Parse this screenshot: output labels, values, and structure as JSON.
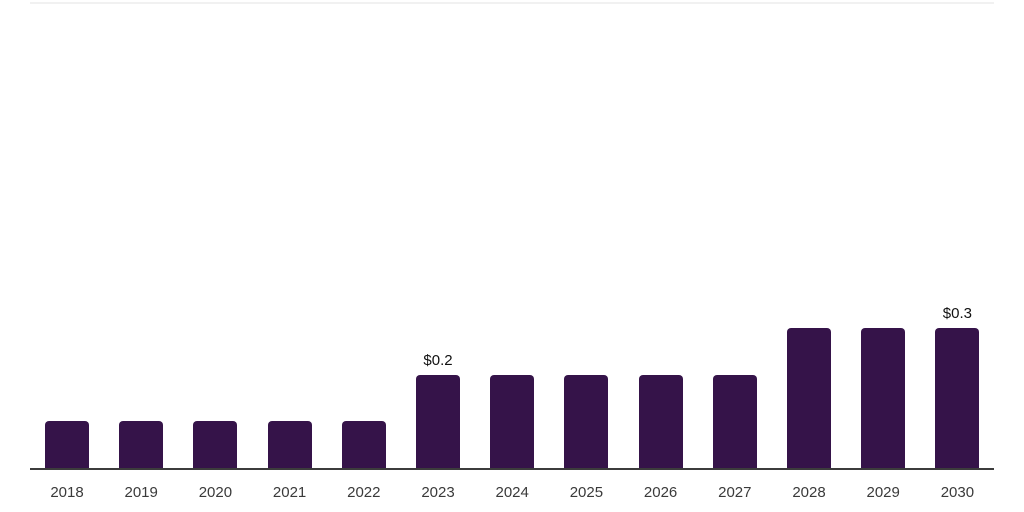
{
  "chart_data": {
    "type": "bar",
    "title": "",
    "xlabel": "",
    "ylabel": "",
    "categories": [
      "2018",
      "2019",
      "2020",
      "2021",
      "2022",
      "2023",
      "2024",
      "2025",
      "2026",
      "2027",
      "2028",
      "2029",
      "2030"
    ],
    "values": [
      0.1,
      0.1,
      0.1,
      0.1,
      0.1,
      0.2,
      0.2,
      0.2,
      0.2,
      0.2,
      0.3,
      0.3,
      0.3
    ],
    "data_labels": [
      "",
      "",
      "",
      "",
      "",
      "$0.2",
      "",
      "",
      "",
      "",
      "",
      "",
      "$0.3"
    ],
    "ylim": [
      0,
      1
    ],
    "grid": "off",
    "legend_position": "none",
    "colors": {
      "bar": "#351349",
      "axis_line": "#3c3c3c",
      "top_border": "#f1f1f1",
      "tick_label": "#3a3a3a",
      "data_label": "#111111",
      "background": "#ffffff"
    }
  }
}
